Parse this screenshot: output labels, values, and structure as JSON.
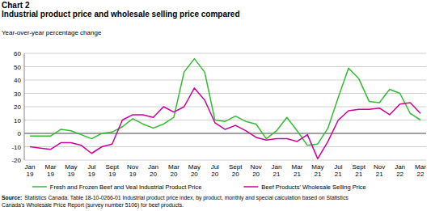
{
  "chart_data": {
    "type": "line",
    "title": "Chart 2",
    "subtitle": "Industrial product price and wholesale selling price compared",
    "y_label": "Year-over-year percentage change",
    "categories": [
      "Jan 19",
      null,
      "Mar 19",
      null,
      "May 19",
      null,
      "Jul 19",
      null,
      "Sept 19",
      null,
      "Nov 19",
      null,
      "Jan 20",
      null,
      "Mar 20",
      null,
      "May 20",
      null,
      "Jul 20",
      null,
      "Sept 20",
      null,
      "Nov 20",
      null,
      "Jan 21",
      null,
      "Mar 21",
      null,
      "May 21",
      null,
      "Jul 21",
      null,
      "Sept 21",
      null,
      "Nov 21",
      null,
      "Jan 22",
      null,
      "Mar 22"
    ],
    "series": [
      {
        "name": "Fresh and Frozen Beef and Veal Industrial Product Price",
        "color": "#33bb33",
        "values": [
          -2,
          -2,
          -2,
          3,
          2,
          -1,
          -4,
          0,
          1,
          5,
          11,
          7,
          4,
          7,
          12,
          46,
          56,
          46,
          10,
          9,
          13,
          9,
          7,
          -4,
          2,
          12,
          2,
          -9,
          -8,
          4,
          27,
          49,
          41,
          24,
          23,
          33,
          30,
          15,
          10
        ]
      },
      {
        "name": "Beef Products' Wholesale Selling Price",
        "color": "#cc0099",
        "values": [
          -10,
          -11,
          -12,
          -7,
          -7,
          -9,
          -15,
          -10,
          -8,
          10,
          14,
          14,
          12,
          20,
          16,
          20,
          34,
          25,
          8,
          3,
          6,
          2,
          -3,
          -5,
          -4,
          -4,
          -6,
          -1,
          -19,
          -6,
          10,
          17,
          18,
          18,
          19,
          14,
          22,
          23,
          15
        ]
      }
    ],
    "ylim": [
      -20,
      60
    ],
    "yticks": [
      -20,
      -10,
      0,
      10,
      20,
      30,
      40,
      50,
      60
    ],
    "grid": true,
    "legend": "bottom",
    "source_label": "Source:",
    "source_lines": [
      "Statistics Canada. Table 18-10-0266-01 Industrial product price index, by product, monthly and special calculation based on Statistics",
      "Canada's Wholesale Price Report (survey number 5106) for beef products."
    ]
  }
}
